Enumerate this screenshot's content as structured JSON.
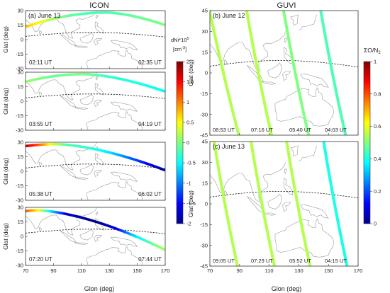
{
  "chart_data": [
    {
      "type": "line",
      "title": "ICON",
      "panel_label": "(a) June 13",
      "xlabel": "Glon (deg)",
      "ylabel": "Glat (deg)",
      "xlim": [
        70,
        170
      ],
      "ylim": [
        -30,
        30
      ],
      "xticks": [
        "70",
        "90",
        "110",
        "130",
        "150",
        "170"
      ],
      "yticks": [
        "30",
        "15",
        "0",
        "-15",
        "-30"
      ],
      "colorbar": {
        "label_line1": "dNi*10",
        "label_sup": "5",
        "label_line2": "[cm",
        "label_line2_sup": "-3",
        "label_line2_end": "]",
        "ticks": [
          "2",
          "1.5",
          "1",
          "0.5",
          "0",
          "-0.5",
          "-1",
          "-1.5",
          "-2"
        ],
        "range": [
          -2,
          2
        ],
        "colormap": "jet"
      },
      "subpanels": [
        {
          "start_time": "02:11 UT",
          "end_time": "02:35 UT",
          "track": {
            "x": [
              70,
              170
            ],
            "y_start": 13,
            "y_peak": 28,
            "peak_lon": 128,
            "y_end": 15,
            "dni": [
              [
                70,
                0.7
              ],
              [
                80,
                0.5
              ],
              [
                90,
                0.1
              ],
              [
                100,
                -0.1
              ],
              [
                110,
                -0.2
              ],
              [
                130,
                -0.2
              ],
              [
                150,
                -0.1
              ],
              [
                170,
                0.0
              ]
            ]
          }
        },
        {
          "start_time": "03:55 UT",
          "end_time": "04:19 UT",
          "track": {
            "x": [
              70,
              170
            ],
            "y_start": 20,
            "y_peak": 28,
            "peak_lon": 112,
            "y_end": 10,
            "dni": [
              [
                70,
                0.1
              ],
              [
                90,
                -0.1
              ],
              [
                110,
                0.0
              ],
              [
                130,
                -0.3
              ],
              [
                150,
                -0.4
              ],
              [
                170,
                -0.5
              ]
            ]
          }
        },
        {
          "start_time": "05:38 UT",
          "end_time": "06:02 UT",
          "track": {
            "x": [
              70,
              170
            ],
            "y_start": 26,
            "y_peak": 28,
            "peak_lon": 92,
            "y_end": 1,
            "dni": [
              [
                70,
                1.8
              ],
              [
                80,
                1.1
              ],
              [
                90,
                0.3
              ],
              [
                100,
                -0.2
              ],
              [
                115,
                -0.3
              ],
              [
                130,
                -0.6
              ],
              [
                145,
                -1.1
              ],
              [
                160,
                -1.6
              ],
              [
                170,
                -1.9
              ]
            ]
          }
        },
        {
          "start_time": "07:20 UT",
          "end_time": "07:44 UT",
          "track": {
            "x": [
              70,
              170
            ],
            "y_start": 26,
            "y_peak": 27,
            "peak_lon": 78,
            "y_end": -14,
            "dni": [
              [
                70,
                1.2
              ],
              [
                78,
                0.6
              ],
              [
                88,
                -0.6
              ],
              [
                100,
                -1.7
              ],
              [
                120,
                -2.0
              ],
              [
                135,
                -1.6
              ],
              [
                145,
                -0.8
              ],
              [
                155,
                -0.3
              ],
              [
                170,
                0.2
              ]
            ]
          }
        }
      ]
    },
    {
      "type": "line",
      "title": "GUVI",
      "xlabel": "Glon (deg)",
      "ylabel": "Glat (deg)",
      "xlim": [
        70,
        170
      ],
      "ylim": [
        -45,
        45
      ],
      "xticks": [
        "70",
        "90",
        "110",
        "130",
        "150",
        "170"
      ],
      "yticks": [
        "45",
        "30",
        "15",
        "0",
        "-15",
        "-30",
        "-45"
      ],
      "colorbar": {
        "label": "ΣO/N",
        "label_sub": "2",
        "ticks": [
          "1",
          "0.8",
          "0.6",
          "0.4",
          "0.2",
          "0"
        ],
        "range": [
          0,
          1
        ],
        "colormap": "jet"
      },
      "subpanels": [
        {
          "panel_label": "(b) June 12",
          "times": [
            "08:53 UT",
            "07:16 UT",
            "05:40 UT",
            "04:03 UT"
          ],
          "tracks": [
            {
              "lon_top": 70,
              "lon_bottom": 90,
              "value": 0.55
            },
            {
              "lon_top": 95,
              "lon_bottom": 112,
              "value": 0.55
            },
            {
              "lon_top": 120,
              "lon_bottom": 137,
              "value": 0.5
            },
            {
              "lon_top": 145,
              "lon_bottom": 162,
              "value": 0.45
            }
          ]
        },
        {
          "panel_label": "(c) June 13",
          "times": [
            "09:05 UT",
            "07:29 UT",
            "05:52 UT",
            "04:15 UT"
          ],
          "tracks": [
            {
              "lon_top": 73,
              "lon_bottom": 89,
              "value": 0.55
            },
            {
              "lon_top": 98,
              "lon_bottom": 114,
              "value": 0.55
            },
            {
              "lon_top": 122,
              "lon_bottom": 138,
              "value": 0.55
            },
            {
              "lon_top": 147,
              "lon_bottom": 163,
              "value": 0.4
            }
          ]
        }
      ]
    }
  ]
}
